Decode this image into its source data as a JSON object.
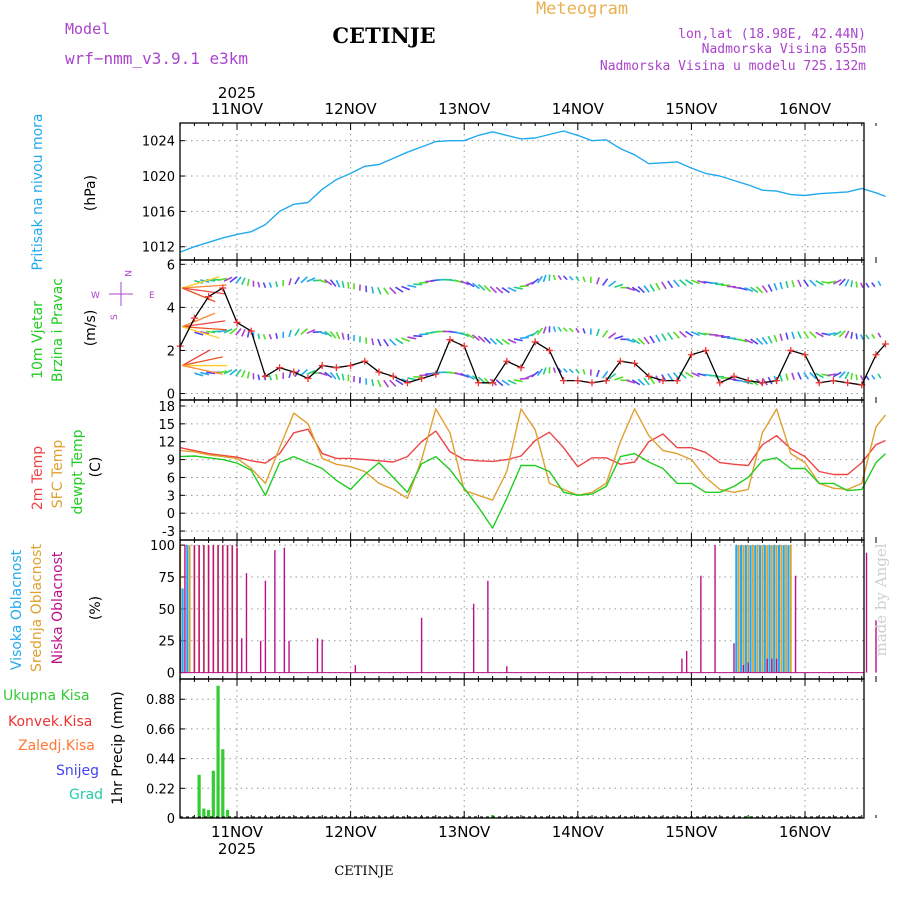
{
  "header": {
    "model_label": "Model",
    "model_value": "wrf−nmm_v3.9.1  e3km",
    "app_title": "Meteogram",
    "station": "CETINJE",
    "coords": "lon,lat (18.98E, 42.44N)",
    "altitude": "Nadmorska Visina 655m",
    "model_altitude": "Nadmorska Visina u modelu 725.132m"
  },
  "footer": {
    "station": "CETINJE",
    "credit": "made by Angel"
  },
  "colors": {
    "pressure": "#22aaee",
    "temp": "#ee4444",
    "sfc_temp": "#e0a030",
    "dewpt": "#22cc22",
    "wind_line": "#000000",
    "wind_marker": "#ee3333",
    "high_cloud": "#22aaee",
    "mid_cloud": "#e0a030",
    "low_cloud": "#bb1188",
    "total_precip": "#33cc33",
    "conv_precip": "#ee3333",
    "strat_precip": "#ff7733",
    "snow": "#4444ee",
    "hail": "#22ccaa",
    "title_purple": "#aa44cc",
    "meteogram_orange": "#e8b050"
  },
  "time_axis": {
    "year": "2025",
    "days": [
      "11NOV",
      "12NOV",
      "13NOV",
      "14NOV",
      "15NOV",
      "16NOV"
    ],
    "day_offsets_h": [
      0,
      24,
      48,
      72,
      96,
      120
    ],
    "start_h": -12,
    "end_h": 137
  },
  "chart_data": [
    {
      "type": "line",
      "title": "Pritisak na nivou mora",
      "ylabel": "(hPa)",
      "ylim": [
        1010.5,
        1026
      ],
      "yticks": [
        1012,
        1016,
        1020,
        1024
      ],
      "x_hours": [
        -12,
        -9,
        -6,
        -3,
        0,
        3,
        6,
        9,
        12,
        15,
        18,
        21,
        24,
        27,
        30,
        33,
        36,
        39,
        42,
        45,
        48,
        51,
        54,
        57,
        60,
        63,
        66,
        69,
        72,
        75,
        78,
        81,
        84,
        87,
        90,
        93,
        96,
        99,
        102,
        105,
        108,
        111,
        114,
        117,
        120,
        123,
        126,
        129,
        132,
        135,
        137
      ],
      "series": [
        {
          "name": "Pritisak",
          "values": [
            1011.4,
            1012.0,
            1012.5,
            1013.0,
            1013.4,
            1013.7,
            1014.5,
            1016.0,
            1016.8,
            1017.0,
            1018.5,
            1019.6,
            1020.3,
            1021.1,
            1021.3,
            1022.0,
            1022.7,
            1023.3,
            1023.9,
            1024.0,
            1024.0,
            1024.6,
            1025.0,
            1024.6,
            1024.2,
            1024.3,
            1024.7,
            1025.1,
            1024.6,
            1024.0,
            1024.1,
            1023.1,
            1022.4,
            1021.4,
            1021.5,
            1021.6,
            1020.9,
            1020.3,
            1020.0,
            1019.5,
            1019.0,
            1018.4,
            1018.3,
            1017.9,
            1017.8,
            1018.0,
            1018.1,
            1018.2,
            1018.6,
            1018.1,
            1017.7
          ]
        }
      ]
    },
    {
      "type": "line",
      "title": "10m Vjetar Brzina i Pravac",
      "ylabel": "(m/s)",
      "ylim": [
        -0.3,
        6.2
      ],
      "yticks": [
        0,
        2,
        4,
        6
      ],
      "compass": {
        "n": "N",
        "s": "S",
        "e": "E",
        "w": "W"
      },
      "x_hours": [
        -12,
        -9,
        -6,
        -3,
        0,
        3,
        6,
        9,
        12,
        15,
        18,
        21,
        24,
        27,
        30,
        33,
        36,
        39,
        42,
        45,
        48,
        51,
        54,
        57,
        60,
        63,
        66,
        69,
        72,
        75,
        78,
        81,
        84,
        87,
        90,
        93,
        96,
        99,
        102,
        105,
        108,
        111,
        114,
        117,
        120,
        123,
        126,
        129,
        132,
        135,
        137
      ],
      "series": [
        {
          "name": "Brzina vjetra",
          "values": [
            2.2,
            3.5,
            4.5,
            4.9,
            3.3,
            2.9,
            0.8,
            1.2,
            1.0,
            0.7,
            1.3,
            1.2,
            1.3,
            1.5,
            1.0,
            0.8,
            0.5,
            0.7,
            0.9,
            2.5,
            2.2,
            0.5,
            0.5,
            1.5,
            1.2,
            2.4,
            2.0,
            0.6,
            0.6,
            0.5,
            0.6,
            1.5,
            1.4,
            0.8,
            0.6,
            0.6,
            1.8,
            2.0,
            0.5,
            0.8,
            0.6,
            0.5,
            0.6,
            2.0,
            1.8,
            0.5,
            0.6,
            0.5,
            0.4,
            1.8,
            2.3
          ]
        }
      ]
    },
    {
      "type": "line",
      "title": "2m Temp / SFC Temp / dewpt Temp",
      "ylabel": "(C)",
      "ylim": [
        -4.5,
        19
      ],
      "yticks": [
        -3,
        0,
        3,
        6,
        9,
        12,
        15,
        18
      ],
      "x_hours": [
        -12,
        -9,
        -6,
        -3,
        0,
        3,
        6,
        9,
        12,
        15,
        18,
        21,
        24,
        27,
        30,
        33,
        36,
        39,
        42,
        45,
        48,
        51,
        54,
        57,
        60,
        63,
        66,
        69,
        72,
        75,
        78,
        81,
        84,
        87,
        90,
        93,
        96,
        99,
        102,
        105,
        108,
        111,
        114,
        117,
        120,
        123,
        126,
        129,
        132,
        135,
        137
      ],
      "series": [
        {
          "name": "2m Temp",
          "values": [
            11.0,
            10.5,
            10.0,
            9.7,
            9.4,
            8.8,
            8.4,
            10.0,
            13.5,
            14.1,
            10.0,
            9.2,
            9.2,
            9.0,
            8.8,
            8.6,
            9.5,
            12.0,
            13.8,
            10.3,
            9.0,
            8.8,
            8.7,
            9.0,
            9.6,
            12.2,
            13.6,
            11.0,
            7.8,
            9.3,
            9.3,
            8.2,
            8.6,
            12.0,
            13.3,
            11.0,
            11.0,
            10.2,
            8.5,
            8.2,
            8.0,
            11.5,
            13.0,
            10.8,
            9.5,
            7.0,
            6.5,
            6.5,
            8.5,
            11.5,
            12.2
          ]
        },
        {
          "name": "SFC Temp",
          "values": [
            10.5,
            10.3,
            9.8,
            9.5,
            9.2,
            7.5,
            5.0,
            11.0,
            16.8,
            15.0,
            9.2,
            8.2,
            7.8,
            7.0,
            5.0,
            4.0,
            2.5,
            9.0,
            17.5,
            13.5,
            3.8,
            3.0,
            2.2,
            7.0,
            17.5,
            14.0,
            5.0,
            4.0,
            3.0,
            3.5,
            5.0,
            12.0,
            17.5,
            13.0,
            10.5,
            10.0,
            9.0,
            6.0,
            4.0,
            3.5,
            4.0,
            13.5,
            17.5,
            10.0,
            8.5,
            5.0,
            4.2,
            4.0,
            5.0,
            14.5,
            16.5
          ]
        },
        {
          "name": "dewpt Temp",
          "values": [
            9.5,
            9.6,
            9.3,
            9.0,
            8.4,
            7.2,
            3.0,
            8.5,
            9.5,
            8.5,
            7.5,
            5.5,
            4.0,
            6.5,
            8.5,
            6.0,
            3.5,
            8.3,
            9.5,
            7.3,
            4.2,
            1.0,
            -2.5,
            2.5,
            8.0,
            8.0,
            7.0,
            3.5,
            3.0,
            3.2,
            4.5,
            9.5,
            10.0,
            8.6,
            7.5,
            5.0,
            5.0,
            3.5,
            3.5,
            4.5,
            6.0,
            8.8,
            9.3,
            7.5,
            7.5,
            5.0,
            5.0,
            3.8,
            4.0,
            8.5,
            10.0
          ]
        }
      ]
    },
    {
      "type": "bar",
      "title": "Visoka / Srednja / Niska Oblacnost",
      "ylabel": "(%)",
      "ylim": [
        -5,
        104
      ],
      "yticks": [
        0,
        25,
        50,
        75,
        100
      ],
      "series": [
        {
          "name": "Visoka Oblacnost",
          "x_hours": [
            -11.5,
            -10.5,
            105.5,
            106.5,
            107.5,
            108.5,
            109.5,
            110.5,
            111.5,
            112.5,
            113.5,
            114.5,
            115.5,
            116.5
          ],
          "values": [
            66,
            100,
            100,
            100,
            100,
            100,
            100,
            100,
            100,
            100,
            100,
            100,
            100,
            100
          ]
        },
        {
          "name": "Srednja Oblacnost",
          "x_hours": [
            -12,
            -10,
            -9,
            -8,
            -7,
            -6,
            -5,
            -4,
            -3,
            -2,
            -1,
            0,
            106,
            107,
            108,
            109,
            110,
            111,
            112,
            113,
            114,
            115,
            116,
            117
          ],
          "values": [
            100,
            100,
            100,
            100,
            100,
            100,
            100,
            100,
            100,
            100,
            100,
            98,
            100,
            100,
            100,
            100,
            100,
            100,
            100,
            100,
            100,
            100,
            100,
            100
          ]
        },
        {
          "name": "Niska Oblacnost",
          "x_hours": [
            -12,
            -11,
            -9,
            -8,
            -7,
            -6,
            -5,
            -4,
            -3,
            -2,
            -1,
            0,
            1,
            2,
            5,
            6,
            8,
            10,
            11,
            17,
            18,
            25,
            39,
            50,
            53,
            57,
            94,
            95,
            98,
            101,
            105,
            107,
            108,
            112,
            113,
            114,
            118,
            133,
            135
          ],
          "values": [
            28,
            100,
            100,
            100,
            100,
            100,
            100,
            100,
            100,
            100,
            100,
            98,
            27,
            78,
            25,
            72,
            96,
            98,
            25,
            27,
            26,
            6,
            43,
            54,
            72,
            5,
            11,
            17,
            76,
            100,
            23,
            6,
            8,
            11,
            11,
            11,
            76,
            94,
            41
          ]
        }
      ]
    },
    {
      "type": "bar",
      "title": "1hr Precip",
      "ylabel": "1hr Precip (mm)",
      "ylim": [
        0,
        1.03
      ],
      "yticks": [
        0,
        0.22,
        0.44,
        0.66,
        0.88
      ],
      "legend": [
        "Ukupna Kisa",
        "Konvek.Kisa",
        "Zaledj.Kisa",
        "Snijeg",
        "Grad"
      ],
      "series": [
        {
          "name": "Ukupna Kisa",
          "x_hours": [
            -8,
            -7,
            -6,
            -5,
            -4,
            -3,
            -2,
            -1,
            54,
            108
          ],
          "values": [
            0.32,
            0.07,
            0.06,
            0.35,
            0.98,
            0.51,
            0.06,
            0.0,
            0.02,
            0.015
          ]
        }
      ]
    }
  ]
}
